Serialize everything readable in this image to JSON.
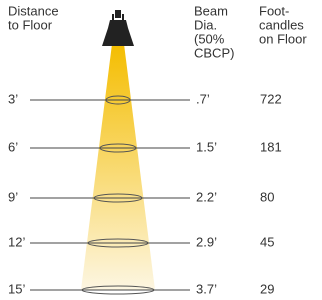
{
  "headers": {
    "distance": [
      "Distance",
      "to Floor"
    ],
    "beam": [
      "Beam",
      "Dia.",
      "(50%",
      "CBCP)"
    ],
    "footcandles": [
      "Foot-",
      "candles",
      "on Floor"
    ]
  },
  "rows": [
    {
      "distance": "3’",
      "beam_dia": ".7’",
      "footcandles": 722
    },
    {
      "distance": "6’",
      "beam_dia": "1.5’",
      "footcandles": 181
    },
    {
      "distance": "9’",
      "beam_dia": "2.2’",
      "footcandles": 80
    },
    {
      "distance": "12’",
      "beam_dia": "2.9’",
      "footcandles": 45
    },
    {
      "distance": "15’",
      "beam_dia": "3.7’",
      "footcandles": 29
    }
  ]
}
